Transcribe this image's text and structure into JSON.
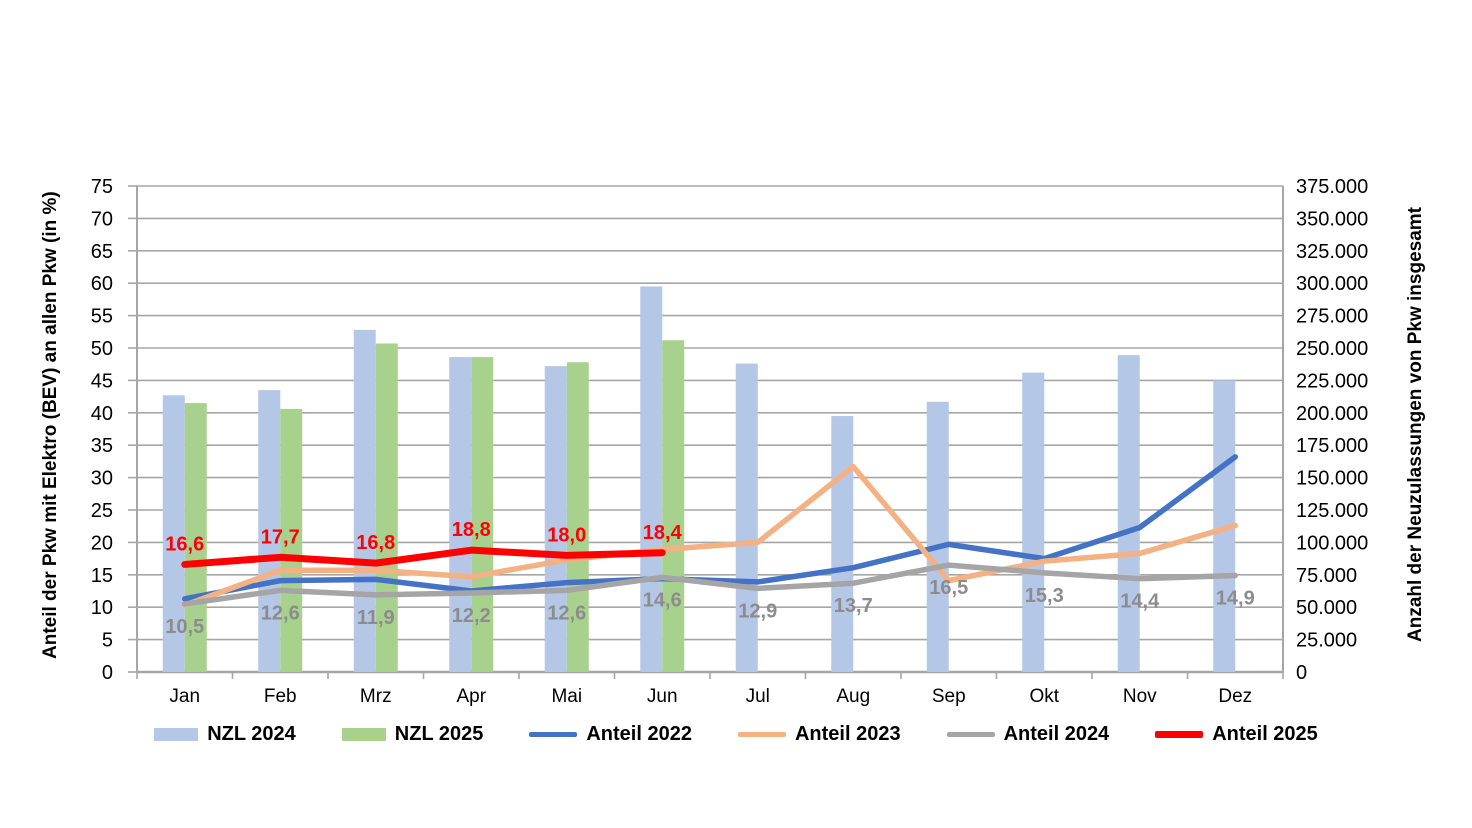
{
  "page": {
    "background": "#ffffff"
  },
  "chart_data": {
    "type": "bar+line combo",
    "categories": [
      "Jan",
      "Feb",
      "Mrz",
      "Apr",
      "Mai",
      "Jun",
      "Jul",
      "Aug",
      "Sep",
      "Okt",
      "Nov",
      "Dez"
    ],
    "left_axis": {
      "label": "Anteil der Pkw mit Elektro (BEV) an allen Pkw (in %)",
      "min": 0,
      "max": 75,
      "step": 5
    },
    "right_axis": {
      "label": "Anzahl der Neuzulassungen von Pkw insgesamt",
      "min": 0,
      "max": 375000,
      "step": 25000
    },
    "grid": true,
    "legend_position": "bottom",
    "colors": {
      "gridline": "#a6a6a6",
      "axis_line": "#a6a6a6",
      "tick_text": "#000000",
      "bar_2024": "#b4c7e7",
      "bar_2025": "#a9d18e",
      "line_2022": "#4472c4",
      "line_2023": "#f4b183",
      "line_2024": "#a5a5a5",
      "line_2025": "#ff0000",
      "label_gray": "#8c8c8c",
      "label_red": "#ff0000"
    },
    "bar_series": [
      {
        "name": "NZL 2024",
        "color": "#b4c7e7",
        "axis": "right",
        "values": [
          213500,
          217500,
          264000,
          243000,
          236000,
          297500,
          238000,
          197500,
          208500,
          231000,
          244500,
          225000
        ]
      },
      {
        "name": "NZL 2025",
        "color": "#a9d18e",
        "axis": "right",
        "values": [
          207500,
          203000,
          253500,
          243000,
          239000,
          256000,
          null,
          null,
          null,
          null,
          null,
          null
        ]
      }
    ],
    "line_series": [
      {
        "name": "Anteil 2022",
        "color": "#4472c4",
        "axis": "left",
        "width": 5.5,
        "show_labels": false,
        "values": [
          11.3,
          14.1,
          14.3,
          12.5,
          13.8,
          14.4,
          13.9,
          16.1,
          19.7,
          17.5,
          22.3,
          33.2
        ]
      },
      {
        "name": "Anteil 2023",
        "color": "#f4b183",
        "axis": "left",
        "width": 5.5,
        "show_labels": false,
        "values": [
          10.3,
          15.7,
          15.7,
          14.7,
          17.3,
          18.9,
          20.0,
          31.7,
          14.1,
          17.1,
          18.3,
          22.6
        ]
      },
      {
        "name": "Anteil 2024",
        "color": "#a5a5a5",
        "axis": "left",
        "width": 5.5,
        "show_labels": true,
        "label_color": "#8c8c8c",
        "label_position": "below",
        "values": [
          10.5,
          12.6,
          11.9,
          12.2,
          12.6,
          14.6,
          12.9,
          13.7,
          16.5,
          15.3,
          14.4,
          14.9
        ]
      },
      {
        "name": "Anteil 2025",
        "color": "#ff0000",
        "axis": "left",
        "width": 7,
        "show_labels": true,
        "label_color": "#ff0000",
        "label_position": "above",
        "values": [
          16.6,
          17.7,
          16.8,
          18.8,
          18.0,
          18.4,
          null,
          null,
          null,
          null,
          null,
          null
        ]
      }
    ]
  }
}
